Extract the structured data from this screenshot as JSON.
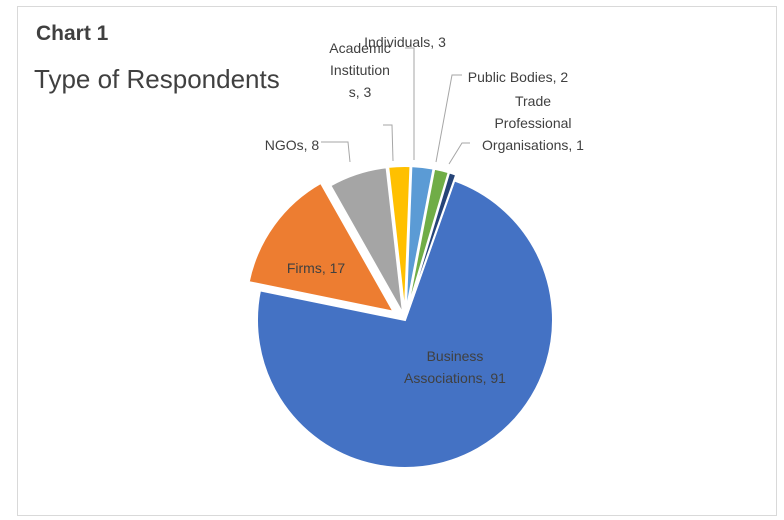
{
  "chart_data": {
    "type": "pie",
    "chart_number": "Chart 1",
    "title": "Type of Respondents",
    "slices": [
      {
        "label": "Business Associations",
        "value": 91,
        "color": "#4472C4"
      },
      {
        "label": "Firms",
        "value": 17,
        "color": "#ED7D31"
      },
      {
        "label": "NGOs",
        "value": 8,
        "color": "#A5A5A5"
      },
      {
        "label": "Academic Institutions",
        "value": 3,
        "color": "#FFC000"
      },
      {
        "label": "Individuals",
        "value": 3,
        "color": "#5B9BD5"
      },
      {
        "label": "Public Bodies",
        "value": 2,
        "color": "#70AD47"
      },
      {
        "label": "Trade Professional Organisations",
        "value": 1,
        "color": "#264478"
      }
    ],
    "data_labels": [
      [
        "Business",
        "Associations, 91"
      ],
      [
        "Firms, 17"
      ],
      [
        "NGOs, 8"
      ],
      [
        "Academic",
        "Institution",
        "s, 3"
      ],
      [
        "Individuals, 3"
      ],
      [
        "Public Bodies, 2"
      ],
      [
        "Trade",
        "Professional",
        "Organisations, 1"
      ]
    ]
  }
}
